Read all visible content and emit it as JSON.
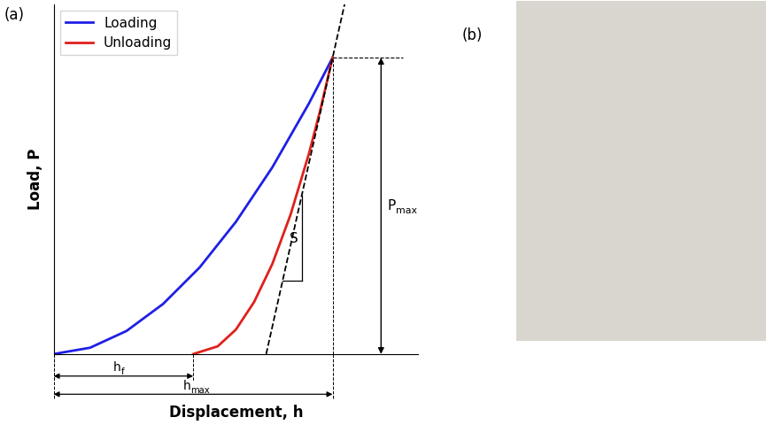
{
  "figure": {
    "panel_labels": [
      "(a)",
      "(b)"
    ]
  },
  "chart_data": {
    "type": "line",
    "xlabel": "Displacement, h",
    "ylabel": "Load, P",
    "xlim": [
      0,
      10
    ],
    "ylim": [
      0,
      10
    ],
    "tick_labels": false,
    "legend": "upper left",
    "series": [
      {
        "name": "Loading",
        "color": "#1f1fe6",
        "line_style": "solid",
        "x": [
          0,
          1,
          2,
          3,
          4,
          5,
          6,
          7,
          7.65
        ],
        "values": [
          0,
          0.18,
          0.66,
          1.43,
          2.47,
          3.78,
          5.34,
          7.16,
          8.47
        ]
      },
      {
        "name": "Unloading",
        "color": "#e0201c",
        "line_style": "solid",
        "x": [
          3.83,
          4.5,
          5.0,
          5.5,
          6.0,
          6.5,
          7.0,
          7.3,
          7.65
        ],
        "values": [
          0,
          0.22,
          0.7,
          1.49,
          2.58,
          3.99,
          5.72,
          6.92,
          8.47
        ]
      },
      {
        "color": "#000000",
        "line_style": "dashed",
        "x": [
          5.83,
          7.98
        ],
        "values": [
          0,
          10
        ]
      }
    ],
    "annotations": [
      {
        "text": "S"
      },
      {
        "text": "P",
        "subscript": "max",
        "value": 8.47,
        "axis": "y"
      },
      {
        "text": "h",
        "subscript": "f",
        "value": 3.83,
        "axis": "x"
      },
      {
        "text": "h",
        "subscript": "max",
        "value": 7.65,
        "axis": "x"
      }
    ]
  }
}
